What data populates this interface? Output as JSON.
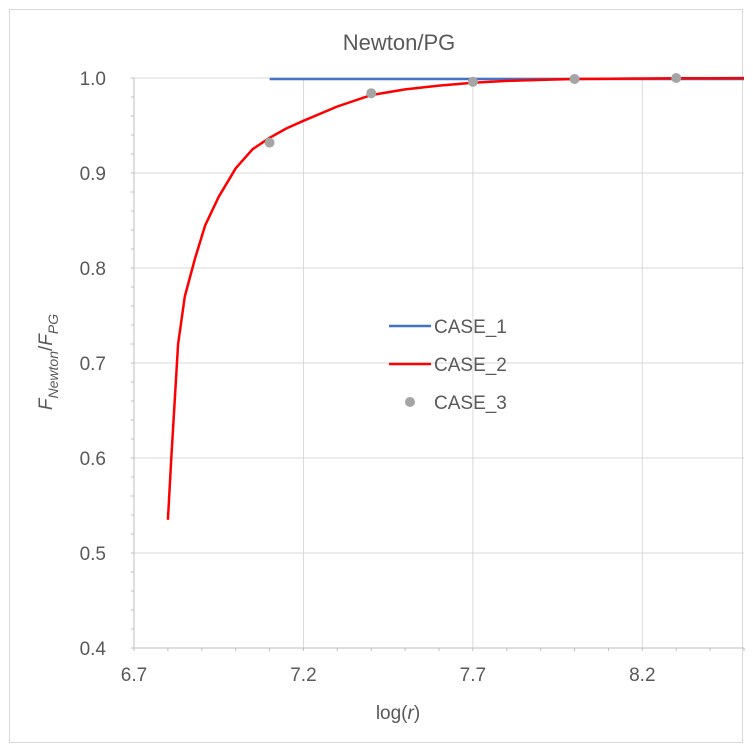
{
  "chart_data": {
    "type": "line",
    "title": "Newton/PG",
    "xlabel": {
      "prefix": "log(",
      "var": "r",
      "suffix": ")"
    },
    "ylabel": {
      "f1": "F",
      "sub1": "Newton",
      "slash": "/",
      "f2": "F",
      "sub2": "PG"
    },
    "xlim": [
      6.7,
      8.5
    ],
    "ylim": [
      0.4,
      1.0
    ],
    "x_ticks": [
      "6.7",
      "7.2",
      "7.7",
      "8.2"
    ],
    "y_ticks": [
      "0.4",
      "0.5",
      "0.6",
      "0.7",
      "0.8",
      "0.9",
      "1.0"
    ],
    "grid": true,
    "legend": {
      "placement": "center"
    },
    "series": [
      {
        "name": "CASE_1",
        "style": "line",
        "color": "#4472C4",
        "x": [
          7.1,
          8.5
        ],
        "y": [
          0.999,
          0.999
        ]
      },
      {
        "name": "CASE_2",
        "style": "line",
        "color": "#FF0000",
        "x": [
          6.8,
          6.81,
          6.82,
          6.83,
          6.85,
          6.88,
          6.91,
          6.95,
          7.0,
          7.05,
          7.1,
          7.15,
          7.2,
          7.3,
          7.4,
          7.5,
          7.6,
          7.7,
          7.8,
          7.9,
          8.0,
          8.1,
          8.2,
          8.3,
          8.4,
          8.5
        ],
        "y": [
          0.535,
          0.6,
          0.66,
          0.72,
          0.77,
          0.81,
          0.845,
          0.875,
          0.905,
          0.925,
          0.937,
          0.947,
          0.955,
          0.97,
          0.982,
          0.988,
          0.992,
          0.995,
          0.997,
          0.998,
          0.999,
          0.9993,
          0.9995,
          0.9997,
          0.9998,
          0.9999
        ]
      },
      {
        "name": "CASE_3",
        "style": "scatter",
        "color": "#A5A5A5",
        "x": [
          7.1,
          7.4,
          7.7,
          8.0,
          8.3
        ],
        "y": [
          0.932,
          0.984,
          0.996,
          0.999,
          1.0
        ]
      }
    ]
  }
}
